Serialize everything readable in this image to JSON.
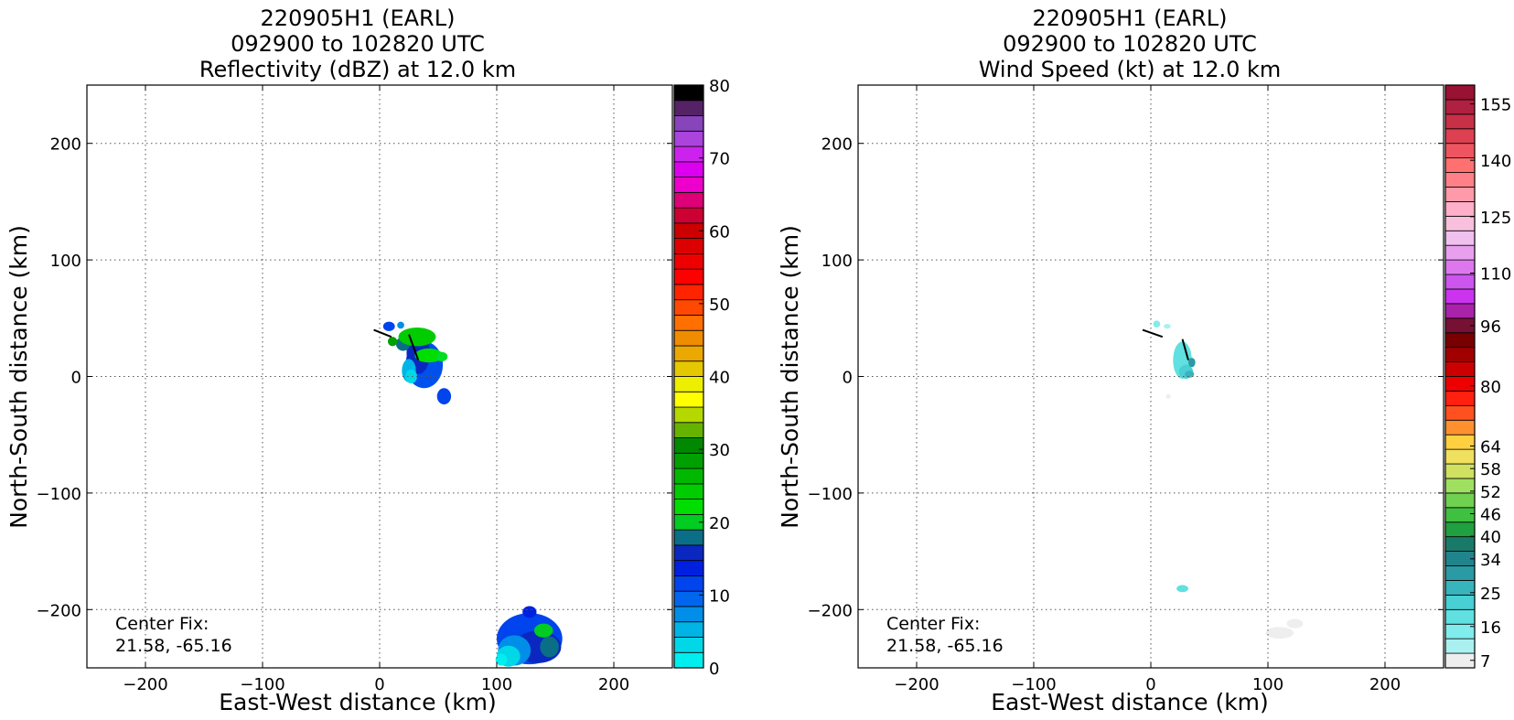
{
  "chart_data": [
    {
      "type": "heatmap",
      "title_lines": [
        "220905H1 (EARL)",
        "092900 to 102820 UTC",
        "Reflectivity (dBZ) at 12.0 km"
      ],
      "xlabel": "East-West distance (km)",
      "ylabel": "North-South distance (km)",
      "xlim": [
        -250,
        250
      ],
      "ylim": [
        -250,
        250
      ],
      "xticks": [
        -200,
        -100,
        0,
        100,
        200
      ],
      "yticks": [
        -200,
        -100,
        0,
        100,
        200
      ],
      "xtick_labels": [
        "−200",
        "−100",
        "0",
        "100",
        "200"
      ],
      "ytick_labels": [
        "−200",
        "−100",
        "0",
        "100",
        "200"
      ],
      "grid": true,
      "annotation": [
        "Center Fix:",
        "21.58, -65.16"
      ],
      "colorbar": {
        "min": 0,
        "max": 80,
        "tick_values": [
          0,
          10,
          20,
          30,
          40,
          50,
          60,
          70,
          80
        ],
        "tick_labels": [
          "0",
          "10",
          "20",
          "30",
          "40",
          "50",
          "60",
          "70",
          "80"
        ],
        "colors": [
          "#00eeee",
          "#00d8e8",
          "#00b4e6",
          "#008ee8",
          "#0066ee",
          "#0044ee",
          "#0020e0",
          "#0a28c0",
          "#0a6e86",
          "#00cc22",
          "#00dd00",
          "#00cc00",
          "#00b800",
          "#00a000",
          "#008800",
          "#66b200",
          "#b4d800",
          "#ffff00",
          "#eeee00",
          "#e6c800",
          "#eaa800",
          "#f08c00",
          "#ff7000",
          "#ff4800",
          "#ff2400",
          "#ff0000",
          "#ee0000",
          "#dd0000",
          "#cc0000",
          "#cc0033",
          "#dd0077",
          "#ee00cc",
          "#dd00ee",
          "#cc22ee",
          "#aa44dd",
          "#8844bb",
          "#552266",
          "#000000"
        ]
      },
      "wind_barbs": [
        [
          -5,
          40,
          10,
          34
        ],
        [
          25,
          36,
          33,
          14
        ]
      ],
      "patches": [
        {
          "x": 38,
          "y": 10,
          "rx": 16,
          "ry": 20,
          "color": "#0050ee"
        },
        {
          "x": 33,
          "y": 20,
          "rx": 10,
          "ry": 18,
          "color": "#0a28c0"
        },
        {
          "x": 20,
          "y": 28,
          "rx": 6,
          "ry": 6,
          "color": "#0a6e86"
        },
        {
          "x": 25,
          "y": 5,
          "rx": 6,
          "ry": 10,
          "color": "#00b4e6"
        },
        {
          "x": 27,
          "y": 0,
          "rx": 5,
          "ry": 6,
          "color": "#00d8e8"
        },
        {
          "x": 32,
          "y": 34,
          "rx": 16,
          "ry": 8,
          "color": "#00cc00"
        },
        {
          "x": 42,
          "y": 18,
          "rx": 12,
          "ry": 6,
          "color": "#00dd00"
        },
        {
          "x": 53,
          "y": 17,
          "rx": 5,
          "ry": 4,
          "color": "#00dd22"
        },
        {
          "x": 8,
          "y": 43,
          "rx": 5,
          "ry": 4,
          "color": "#0044ee"
        },
        {
          "x": 18,
          "y": 44,
          "rx": 3,
          "ry": 3,
          "color": "#008ee8"
        },
        {
          "x": 11,
          "y": 30,
          "rx": 4,
          "ry": 4,
          "color": "#00a000"
        },
        {
          "x": 55,
          "y": -17,
          "rx": 6,
          "ry": 7,
          "color": "#0044ee"
        },
        {
          "x": 128,
          "y": -225,
          "rx": 28,
          "ry": 22,
          "color": "#0044ee"
        },
        {
          "x": 135,
          "y": -232,
          "rx": 20,
          "ry": 14,
          "color": "#0a28c0"
        },
        {
          "x": 115,
          "y": -235,
          "rx": 14,
          "ry": 13,
          "color": "#008ee8"
        },
        {
          "x": 110,
          "y": -240,
          "rx": 10,
          "ry": 9,
          "color": "#00d8e8"
        },
        {
          "x": 104,
          "y": -243,
          "rx": 5,
          "ry": 5,
          "color": "#00eeee"
        },
        {
          "x": 140,
          "y": -218,
          "rx": 8,
          "ry": 6,
          "color": "#00cc22"
        },
        {
          "x": 145,
          "y": -232,
          "rx": 8,
          "ry": 9,
          "color": "#0a6e86"
        },
        {
          "x": 128,
          "y": -202,
          "rx": 6,
          "ry": 5,
          "color": "#0020e0"
        }
      ]
    },
    {
      "type": "heatmap",
      "title_lines": [
        "220905H1 (EARL)",
        "092900 to 102820 UTC",
        "Wind Speed (kt) at 12.0 km"
      ],
      "xlabel": "East-West distance (km)",
      "ylabel": "North-South distance (km)",
      "xlim": [
        -250,
        250
      ],
      "ylim": [
        -250,
        250
      ],
      "xticks": [
        -200,
        -100,
        0,
        100,
        200
      ],
      "yticks": [
        -200,
        -100,
        0,
        100,
        200
      ],
      "xtick_labels": [
        "−200",
        "−100",
        "0",
        "100",
        "200"
      ],
      "ytick_labels": [
        "−200",
        "−100",
        "0",
        "100",
        "200"
      ],
      "grid": true,
      "annotation": [
        "Center Fix:",
        "21.58, -65.16"
      ],
      "colorbar": {
        "min": 5,
        "max": 160,
        "tick_values": [
          7,
          16,
          25,
          34,
          40,
          46,
          52,
          58,
          64,
          80,
          96,
          110,
          125,
          140,
          155
        ],
        "tick_labels": [
          "7",
          "16",
          "25",
          "34",
          "40",
          "46",
          "52",
          "58",
          "64",
          "80",
          "96",
          "110",
          "125",
          "140",
          "155"
        ],
        "colors": [
          "#eeeeee",
          "#aaf0f0",
          "#80ecec",
          "#60e0e0",
          "#48d0d4",
          "#38b4bc",
          "#2a9aa4",
          "#20848c",
          "#1a7a6a",
          "#20a040",
          "#40c040",
          "#70d050",
          "#a0e060",
          "#d0e060",
          "#f0e060",
          "#ffd040",
          "#ff9030",
          "#ff5020",
          "#ff2010",
          "#ee0000",
          "#cc0000",
          "#a00000",
          "#780000",
          "#771133",
          "#aa22aa",
          "#cc33ee",
          "#cc55ee",
          "#dd77ee",
          "#e8a0ee",
          "#f0c0ee",
          "#f8c0dc",
          "#ffb0c8",
          "#ff9aaa",
          "#ff8088",
          "#ff7070",
          "#ee5560",
          "#dd4050",
          "#c83048",
          "#b02040",
          "#991133"
        ]
      },
      "wind_barbs": [
        [
          -7,
          40,
          10,
          34
        ],
        [
          27,
          32,
          32,
          14
        ]
      ],
      "patches": [
        {
          "x": 5,
          "y": 45,
          "rx": 3,
          "ry": 3,
          "color": "#80ecec"
        },
        {
          "x": 14,
          "y": 43,
          "rx": 3,
          "ry": 2,
          "color": "#aaf0f0"
        },
        {
          "x": 27,
          "y": 14,
          "rx": 8,
          "ry": 16,
          "color": "#60e0e0"
        },
        {
          "x": 30,
          "y": 4,
          "rx": 6,
          "ry": 6,
          "color": "#48d0d4"
        },
        {
          "x": 33,
          "y": 2,
          "rx": 4,
          "ry": 3,
          "color": "#38b4bc"
        },
        {
          "x": 35,
          "y": 12,
          "rx": 3,
          "ry": 4,
          "color": "#2a9aa4"
        },
        {
          "x": 15,
          "y": -17,
          "rx": 2,
          "ry": 2,
          "color": "#eeeeee"
        },
        {
          "x": 27,
          "y": -182,
          "rx": 5,
          "ry": 3,
          "color": "#60e0e0"
        },
        {
          "x": 110,
          "y": -220,
          "rx": 12,
          "ry": 5,
          "color": "#eeeeee"
        },
        {
          "x": 123,
          "y": -212,
          "rx": 7,
          "ry": 4,
          "color": "#eeeeee"
        }
      ]
    }
  ]
}
